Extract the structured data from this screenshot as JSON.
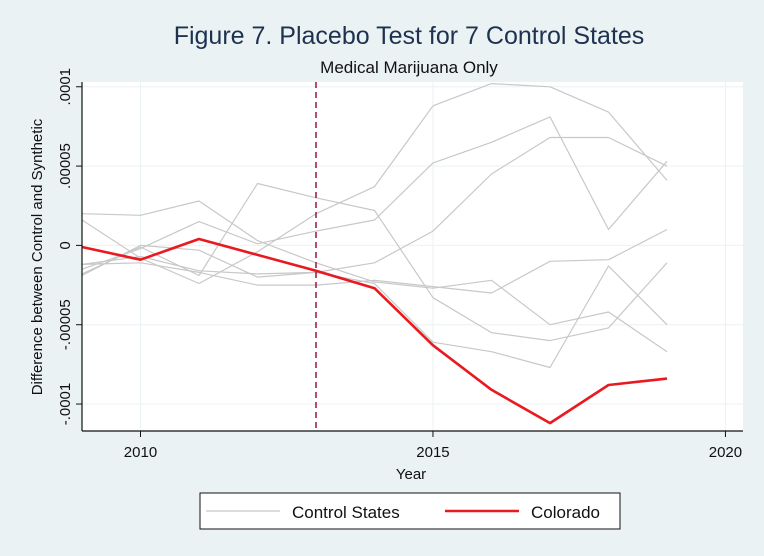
{
  "chart_data": {
    "type": "line",
    "title": "Figure 7. Placebo Test for 7 Control States",
    "subtitle": "Medical Marijuana Only",
    "xlabel": "Year",
    "ylabel": "Difference between Control and Synthetic",
    "xlim": [
      2009,
      2020.3
    ],
    "ylim": [
      -0.000117,
      0.000103
    ],
    "xticks": [
      2010,
      2015,
      2020
    ],
    "xtick_labels": [
      "2010",
      "2015",
      "2020"
    ],
    "yticks": [
      0.0001,
      5e-05,
      0,
      -5e-05,
      -0.0001
    ],
    "ytick_labels": [
      ".0001",
      ".00005",
      "0",
      "-.00005",
      "-.0001"
    ],
    "treatment_year": 2013,
    "grid": true,
    "legend_position": "bottom",
    "x": [
      2009,
      2010,
      2011,
      2012,
      2013,
      2014,
      2015,
      2016,
      2017,
      2018,
      2019
    ],
    "series": [
      {
        "legend": "Control States",
        "color": "#c8c8c8",
        "values": [
          1.6e-05,
          -8e-06,
          -2.4e-05,
          -4e-06,
          2e-05,
          3.7e-05,
          8.8e-05,
          0.000102,
          0.0001,
          8.4e-05,
          4.1e-05
        ]
      },
      {
        "color": "#c8c8c8",
        "values": [
          2e-05,
          1.9e-05,
          2.8e-05,
          3e-06,
          -1.1e-05,
          -2.3e-05,
          -2.7e-05,
          -2.2e-05,
          -5e-05,
          -4.2e-05,
          -6.7e-05
        ]
      },
      {
        "color": "#c8c8c8",
        "values": [
          -1.5e-05,
          -2e-06,
          1.5e-05,
          1e-06,
          9e-06,
          1.6e-05,
          5.2e-05,
          6.5e-05,
          8.1e-05,
          1e-05,
          5.3e-05
        ]
      },
      {
        "color": "#c8c8c8",
        "values": [
          -1.8e-05,
          -1e-06,
          -1.9e-05,
          3.9e-05,
          3e-05,
          2.2e-05,
          -3.3e-05,
          -5.5e-05,
          -6e-05,
          -5.2e-05,
          -1.1e-05
        ]
      },
      {
        "color": "#c8c8c8",
        "values": [
          -1.2e-05,
          -1.1e-05,
          -1.7e-05,
          -2.5e-05,
          -2.5e-05,
          -2.2e-05,
          -2.6e-05,
          -3e-05,
          -1e-05,
          -9e-06,
          1e-05
        ]
      },
      {
        "color": "#c8c8c8",
        "values": [
          -1.9e-05,
          0.0,
          -3e-06,
          -2e-05,
          -1.7e-05,
          -1.1e-05,
          9e-06,
          4.5e-05,
          6.8e-05,
          6.8e-05,
          5e-05
        ]
      },
      {
        "color": "#c8c8c8",
        "values": [
          -1.2e-05,
          -7e-06,
          -1.6e-05,
          -1.8e-05,
          -1.7e-05,
          -2.4e-05,
          -6.1e-05,
          -6.7e-05,
          -7.7e-05,
          -1.3e-05,
          -5e-05
        ]
      },
      {
        "legend": "Colorado",
        "color": "#e8191f",
        "values": [
          -1e-06,
          -9e-06,
          4e-06,
          -6e-06,
          -1.6e-05,
          -2.7e-05,
          -6.3e-05,
          -9.1e-05,
          -0.000112,
          -8.8e-05,
          -8.4e-05
        ]
      }
    ]
  }
}
